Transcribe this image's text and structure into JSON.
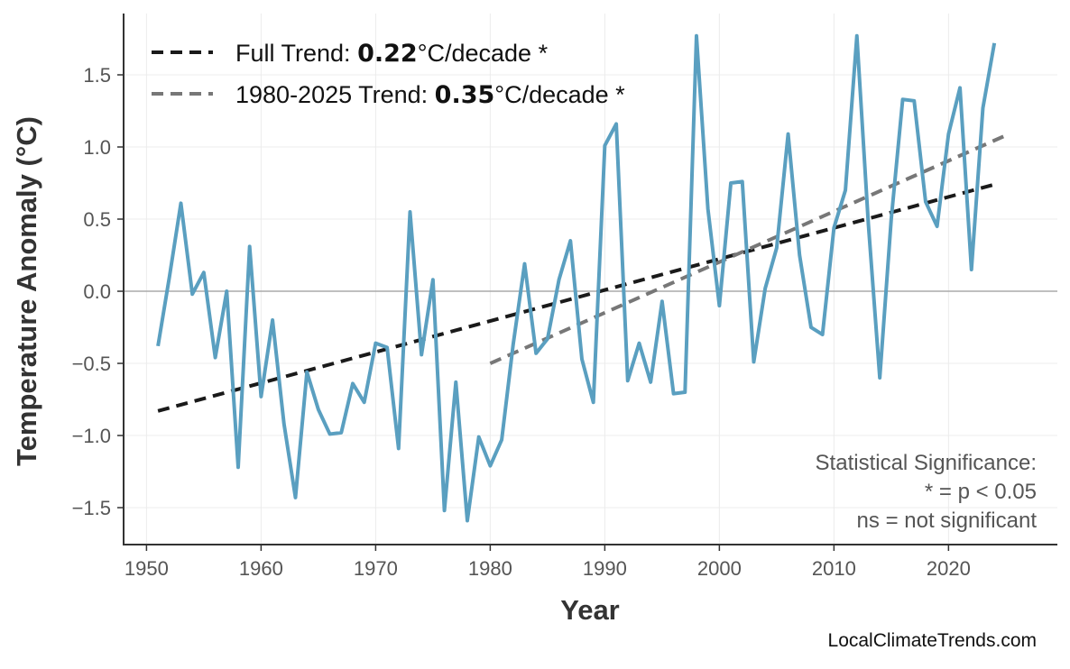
{
  "chart_data": {
    "type": "line",
    "title": "",
    "xlabel": "Year",
    "ylabel": "Temperature Anomaly (°C)",
    "xlim": [
      1948,
      2029.5
    ],
    "ylim": [
      -1.756,
      1.925
    ],
    "xticks": [
      1950,
      1960,
      1970,
      1980,
      1990,
      2000,
      2010,
      2020
    ],
    "yticks": [
      -1.5,
      -1.0,
      -0.5,
      0.0,
      0.5,
      1.0,
      1.5
    ],
    "ytick_labels": [
      "−1.5",
      "−1.0",
      "−0.5",
      "0.0",
      "0.5",
      "1.0",
      "1.5"
    ],
    "grid": true,
    "zero_line": true,
    "legend_position": "top-left",
    "colors": {
      "series": "#5a9fc0",
      "full_trend": "#1a1a1a",
      "recent_trend": "#777777"
    },
    "series": [
      {
        "x": [
          1951,
          1952,
          1953,
          1954,
          1955,
          1956,
          1957,
          1958,
          1959,
          1960,
          1961,
          1962,
          1963,
          1964,
          1965,
          1966,
          1967,
          1968,
          1969,
          1970,
          1971,
          1972,
          1973,
          1974,
          1975,
          1976,
          1977,
          1978,
          1979,
          1980,
          1981,
          1982,
          1983,
          1984,
          1985,
          1986,
          1987,
          1988,
          1989,
          1990,
          1991,
          1992,
          1993,
          1994,
          1995,
          1996,
          1997,
          1998,
          1999,
          2000,
          2001,
          2002,
          2003,
          2004,
          2005,
          2006,
          2007,
          2008,
          2009,
          2010,
          2011,
          2012,
          2013,
          2014,
          2015,
          2016,
          2017,
          2018,
          2019,
          2020,
          2021,
          2022,
          2023,
          2024
        ],
        "values": [
          -0.38,
          0.1,
          0.61,
          -0.02,
          0.13,
          -0.46,
          0.0,
          -1.22,
          0.31,
          -0.73,
          -0.2,
          -0.92,
          -1.43,
          -0.56,
          -0.82,
          -0.99,
          -0.98,
          -0.64,
          -0.77,
          -0.36,
          -0.39,
          -1.09,
          0.55,
          -0.44,
          0.08,
          -1.52,
          -0.63,
          -1.59,
          -1.01,
          -1.21,
          -1.03,
          -0.37,
          0.19,
          -0.43,
          -0.33,
          0.08,
          0.35,
          -0.47,
          -0.77,
          1.01,
          1.16,
          -0.62,
          -0.36,
          -0.63,
          -0.07,
          -0.71,
          -0.7,
          1.77,
          0.57,
          -0.1,
          0.75,
          0.76,
          -0.49,
          0.02,
          0.3,
          1.09,
          0.25,
          -0.25,
          -0.3,
          0.44,
          0.7,
          1.77,
          0.47,
          -0.6,
          0.5,
          1.33,
          1.32,
          0.62,
          0.45,
          1.09,
          1.41,
          0.15,
          1.27,
          1.72
        ]
      }
    ],
    "trends": [
      {
        "label_prefix": "Full Trend: ",
        "value": "0.22",
        "label_suffix": "°C/decade *",
        "x": [
          1951,
          2024
        ],
        "y": [
          -0.83,
          0.74
        ]
      },
      {
        "label_prefix": "1980-2025 Trend: ",
        "value": "0.35",
        "label_suffix": "°C/decade *",
        "x": [
          1980,
          2025
        ],
        "y": [
          -0.5,
          1.08
        ]
      }
    ],
    "annotations": {
      "significance_title": "Statistical Significance:",
      "significance_line1": "* = p < 0.05",
      "significance_line2": "ns = not significant",
      "credit": "LocalClimateTrends.com"
    }
  }
}
